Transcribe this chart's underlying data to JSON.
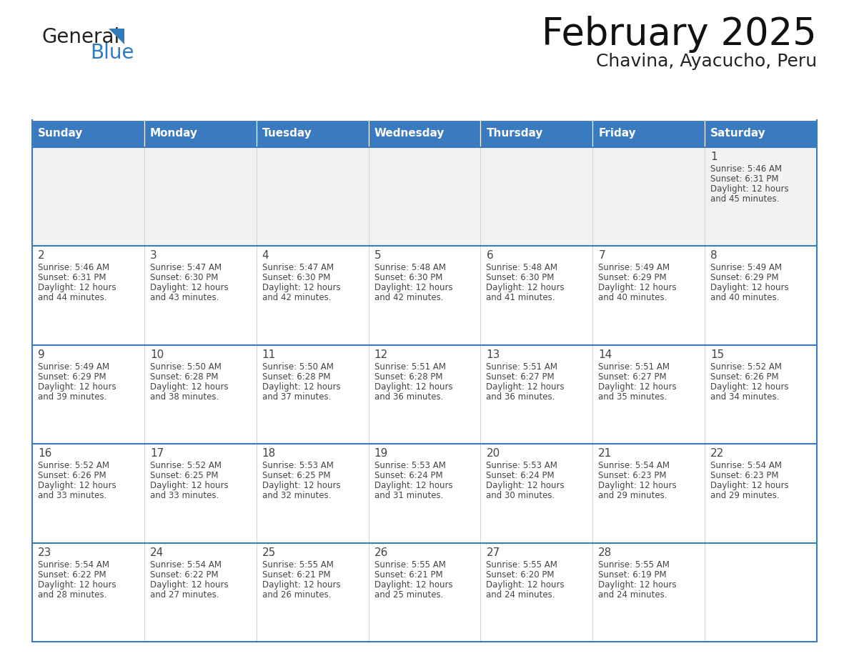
{
  "title": "February 2025",
  "subtitle": "Chavina, Ayacucho, Peru",
  "header_bg": "#3a7abf",
  "header_text": "#ffffff",
  "row1_bg": "#f2f2f2",
  "cell_bg": "#ffffff",
  "border_color": "#3a7abf",
  "text_color": "#444444",
  "days_of_week": [
    "Sunday",
    "Monday",
    "Tuesday",
    "Wednesday",
    "Thursday",
    "Friday",
    "Saturday"
  ],
  "calendar_data": [
    [
      null,
      null,
      null,
      null,
      null,
      null,
      {
        "day": 1,
        "sunrise": "5:46 AM",
        "sunset": "6:31 PM",
        "daylight": "12 hours\nand 45 minutes."
      }
    ],
    [
      {
        "day": 2,
        "sunrise": "5:46 AM",
        "sunset": "6:31 PM",
        "daylight": "12 hours\nand 44 minutes."
      },
      {
        "day": 3,
        "sunrise": "5:47 AM",
        "sunset": "6:30 PM",
        "daylight": "12 hours\nand 43 minutes."
      },
      {
        "day": 4,
        "sunrise": "5:47 AM",
        "sunset": "6:30 PM",
        "daylight": "12 hours\nand 42 minutes."
      },
      {
        "day": 5,
        "sunrise": "5:48 AM",
        "sunset": "6:30 PM",
        "daylight": "12 hours\nand 42 minutes."
      },
      {
        "day": 6,
        "sunrise": "5:48 AM",
        "sunset": "6:30 PM",
        "daylight": "12 hours\nand 41 minutes."
      },
      {
        "day": 7,
        "sunrise": "5:49 AM",
        "sunset": "6:29 PM",
        "daylight": "12 hours\nand 40 minutes."
      },
      {
        "day": 8,
        "sunrise": "5:49 AM",
        "sunset": "6:29 PM",
        "daylight": "12 hours\nand 40 minutes."
      }
    ],
    [
      {
        "day": 9,
        "sunrise": "5:49 AM",
        "sunset": "6:29 PM",
        "daylight": "12 hours\nand 39 minutes."
      },
      {
        "day": 10,
        "sunrise": "5:50 AM",
        "sunset": "6:28 PM",
        "daylight": "12 hours\nand 38 minutes."
      },
      {
        "day": 11,
        "sunrise": "5:50 AM",
        "sunset": "6:28 PM",
        "daylight": "12 hours\nand 37 minutes."
      },
      {
        "day": 12,
        "sunrise": "5:51 AM",
        "sunset": "6:28 PM",
        "daylight": "12 hours\nand 36 minutes."
      },
      {
        "day": 13,
        "sunrise": "5:51 AM",
        "sunset": "6:27 PM",
        "daylight": "12 hours\nand 36 minutes."
      },
      {
        "day": 14,
        "sunrise": "5:51 AM",
        "sunset": "6:27 PM",
        "daylight": "12 hours\nand 35 minutes."
      },
      {
        "day": 15,
        "sunrise": "5:52 AM",
        "sunset": "6:26 PM",
        "daylight": "12 hours\nand 34 minutes."
      }
    ],
    [
      {
        "day": 16,
        "sunrise": "5:52 AM",
        "sunset": "6:26 PM",
        "daylight": "12 hours\nand 33 minutes."
      },
      {
        "day": 17,
        "sunrise": "5:52 AM",
        "sunset": "6:25 PM",
        "daylight": "12 hours\nand 33 minutes."
      },
      {
        "day": 18,
        "sunrise": "5:53 AM",
        "sunset": "6:25 PM",
        "daylight": "12 hours\nand 32 minutes."
      },
      {
        "day": 19,
        "sunrise": "5:53 AM",
        "sunset": "6:24 PM",
        "daylight": "12 hours\nand 31 minutes."
      },
      {
        "day": 20,
        "sunrise": "5:53 AM",
        "sunset": "6:24 PM",
        "daylight": "12 hours\nand 30 minutes."
      },
      {
        "day": 21,
        "sunrise": "5:54 AM",
        "sunset": "6:23 PM",
        "daylight": "12 hours\nand 29 minutes."
      },
      {
        "day": 22,
        "sunrise": "5:54 AM",
        "sunset": "6:23 PM",
        "daylight": "12 hours\nand 29 minutes."
      }
    ],
    [
      {
        "day": 23,
        "sunrise": "5:54 AM",
        "sunset": "6:22 PM",
        "daylight": "12 hours\nand 28 minutes."
      },
      {
        "day": 24,
        "sunrise": "5:54 AM",
        "sunset": "6:22 PM",
        "daylight": "12 hours\nand 27 minutes."
      },
      {
        "day": 25,
        "sunrise": "5:55 AM",
        "sunset": "6:21 PM",
        "daylight": "12 hours\nand 26 minutes."
      },
      {
        "day": 26,
        "sunrise": "5:55 AM",
        "sunset": "6:21 PM",
        "daylight": "12 hours\nand 25 minutes."
      },
      {
        "day": 27,
        "sunrise": "5:55 AM",
        "sunset": "6:20 PM",
        "daylight": "12 hours\nand 24 minutes."
      },
      {
        "day": 28,
        "sunrise": "5:55 AM",
        "sunset": "6:19 PM",
        "daylight": "12 hours\nand 24 minutes."
      },
      null
    ]
  ],
  "logo_general_color": "#222222",
  "logo_blue_color": "#2e7bbf",
  "logo_triangle_color": "#2e7bbf"
}
